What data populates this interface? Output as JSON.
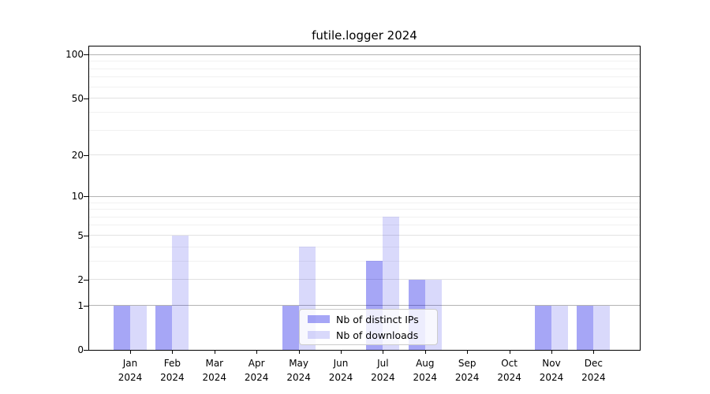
{
  "figure": {
    "title": "futile.logger 2024"
  },
  "chart_data": {
    "type": "bar",
    "title": "futile.logger 2024",
    "categories": [
      "Jan",
      "Feb",
      "Mar",
      "Apr",
      "May",
      "Jun",
      "Jul",
      "Aug",
      "Sep",
      "Oct",
      "Nov",
      "Dec"
    ],
    "year": "2024",
    "series": [
      {
        "name": "Nb of distinct IPs",
        "color": "#0000e6",
        "alpha": 0.35,
        "values": [
          1,
          1,
          0,
          0,
          1,
          0,
          3,
          2,
          0,
          0,
          1,
          1
        ]
      },
      {
        "name": "Nb of downloads",
        "color": "#0000e6",
        "alpha": 0.15,
        "values": [
          1,
          5,
          0,
          0,
          4,
          0,
          7,
          2,
          0,
          0,
          1,
          1
        ]
      }
    ],
    "xlabel": "",
    "ylabel": "",
    "scale": "log1p",
    "ylim": [
      0,
      113.6
    ],
    "y_ticks": [
      0,
      1,
      2,
      5,
      10,
      20,
      50,
      100
    ],
    "minor_gridlines": [
      3,
      4,
      6,
      7,
      8,
      9,
      30,
      40,
      60,
      70,
      80,
      90
    ],
    "grid": true,
    "legend_position": "inside lower-center"
  },
  "colors": {
    "grid_power10": "#b3b3b3",
    "grid_major": "#e2e2e2",
    "grid_minor": "#f1f1f1",
    "spine": "#000000",
    "bar_ips_effective": "#a6a6f6",
    "bar_downloads_effective": "#dadafa",
    "legend_border": "#cccccc"
  }
}
